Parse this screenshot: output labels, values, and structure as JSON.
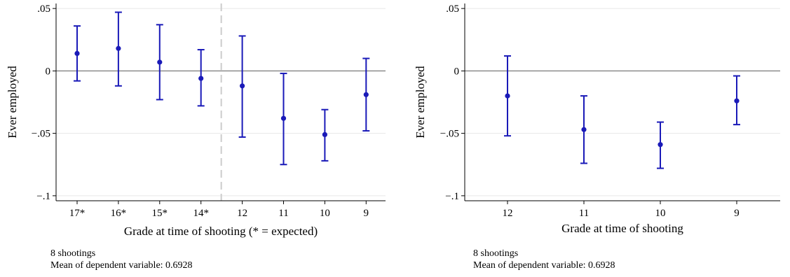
{
  "chart_data": [
    {
      "type": "scatter",
      "subtype": "point-with-error-bars",
      "ylabel": "Ever employed",
      "xlabel": "Grade at time of shooting (* = expected)",
      "categories": [
        "17*",
        "16*",
        "15*",
        "14*",
        "12",
        "11",
        "10",
        "9"
      ],
      "points": [
        {
          "x": "17*",
          "estimate": 0.014,
          "ci_low": -0.008,
          "ci_high": 0.036
        },
        {
          "x": "16*",
          "estimate": 0.018,
          "ci_low": -0.012,
          "ci_high": 0.047
        },
        {
          "x": "15*",
          "estimate": 0.007,
          "ci_low": -0.023,
          "ci_high": 0.037
        },
        {
          "x": "14*",
          "estimate": -0.006,
          "ci_low": -0.028,
          "ci_high": 0.017
        },
        {
          "x": "12",
          "estimate": -0.012,
          "ci_low": -0.053,
          "ci_high": 0.028
        },
        {
          "x": "11",
          "estimate": -0.038,
          "ci_low": -0.075,
          "ci_high": -0.002
        },
        {
          "x": "10",
          "estimate": -0.051,
          "ci_low": -0.072,
          "ci_high": -0.031
        },
        {
          "x": "9",
          "estimate": -0.019,
          "ci_low": -0.048,
          "ci_high": 0.01
        }
      ],
      "yticks": [
        {
          "value": 0.05,
          "label": ".05"
        },
        {
          "value": 0,
          "label": "0"
        },
        {
          "value": -0.05,
          "label": "−.05"
        },
        {
          "value": -0.1,
          "label": "−.1"
        }
      ],
      "ylim": [
        -0.104,
        0.054
      ],
      "reference_line": 0,
      "vertical_divider_between": [
        "14*",
        "12"
      ],
      "grid": true,
      "notes": [
        "8 shootings",
        "Mean of dependent variable: 0.6928"
      ],
      "colors": {
        "marker": "#1a1ab8",
        "zero_line": "#8c8c8c",
        "divider": "#cccccc",
        "grid": "#e8e8e8"
      }
    },
    {
      "type": "scatter",
      "subtype": "point-with-error-bars",
      "ylabel": "Ever employed",
      "xlabel": "Grade at time of shooting",
      "categories": [
        "12",
        "11",
        "10",
        "9"
      ],
      "points": [
        {
          "x": "12",
          "estimate": -0.02,
          "ci_low": -0.052,
          "ci_high": 0.012
        },
        {
          "x": "11",
          "estimate": -0.047,
          "ci_low": -0.074,
          "ci_high": -0.02
        },
        {
          "x": "10",
          "estimate": -0.059,
          "ci_low": -0.078,
          "ci_high": -0.041
        },
        {
          "x": "9",
          "estimate": -0.024,
          "ci_low": -0.043,
          "ci_high": -0.004
        }
      ],
      "yticks": [
        {
          "value": 0.05,
          "label": ".05"
        },
        {
          "value": 0,
          "label": "0"
        },
        {
          "value": -0.05,
          "label": "−.05"
        },
        {
          "value": -0.1,
          "label": "−.1"
        }
      ],
      "ylim": [
        -0.104,
        0.054
      ],
      "reference_line": 0,
      "grid": true,
      "notes": [
        "8 shootings",
        "Mean of dependent variable: 0.6928"
      ],
      "colors": {
        "marker": "#1a1ab8",
        "zero_line": "#8c8c8c",
        "grid": "#e8e8e8"
      }
    }
  ]
}
